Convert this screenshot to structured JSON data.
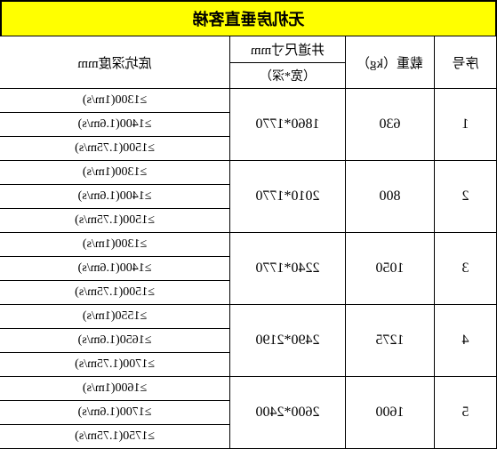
{
  "title": "无机房垂直客梯",
  "headers": {
    "seq": "序号",
    "load": "载重（kg）",
    "shaft_top": "井道尺寸mm",
    "shaft_sub": "（宽*深）",
    "pit": "底坑深度mm"
  },
  "colors": {
    "title_bg": "#ffff00",
    "border": "#000000",
    "bg": "#ffffff"
  },
  "rows": [
    {
      "seq": "1",
      "load": "630",
      "shaft": "1860*1770",
      "pits": [
        "≥1300(1m/s)",
        "≥1400(1.6m/s)",
        "≥1500(1.75m/s)"
      ]
    },
    {
      "seq": "2",
      "load": "800",
      "shaft": "2010*1770",
      "pits": [
        "≥1300(1m/s)",
        "≥1400(1.6m/s)",
        "≥1500(1.75m/s)"
      ]
    },
    {
      "seq": "3",
      "load": "1050",
      "shaft": "2240*1770",
      "pits": [
        "≥1300(1m/s)",
        "≥1400(1.6m/s)",
        "≥1500(1.75m/s)"
      ]
    },
    {
      "seq": "4",
      "load": "1275",
      "shaft": "2490*2190",
      "pits": [
        "≥1550(1m/s)",
        "≥1650(1.6m/s)",
        "≥1700(1.75m/s)"
      ]
    },
    {
      "seq": "5",
      "load": "1600",
      "shaft": "2600*2400",
      "pits": [
        "≥1600(1m/s)",
        "≥1700(1.6m/s)",
        "≥1750(1.75m/s)"
      ]
    }
  ]
}
